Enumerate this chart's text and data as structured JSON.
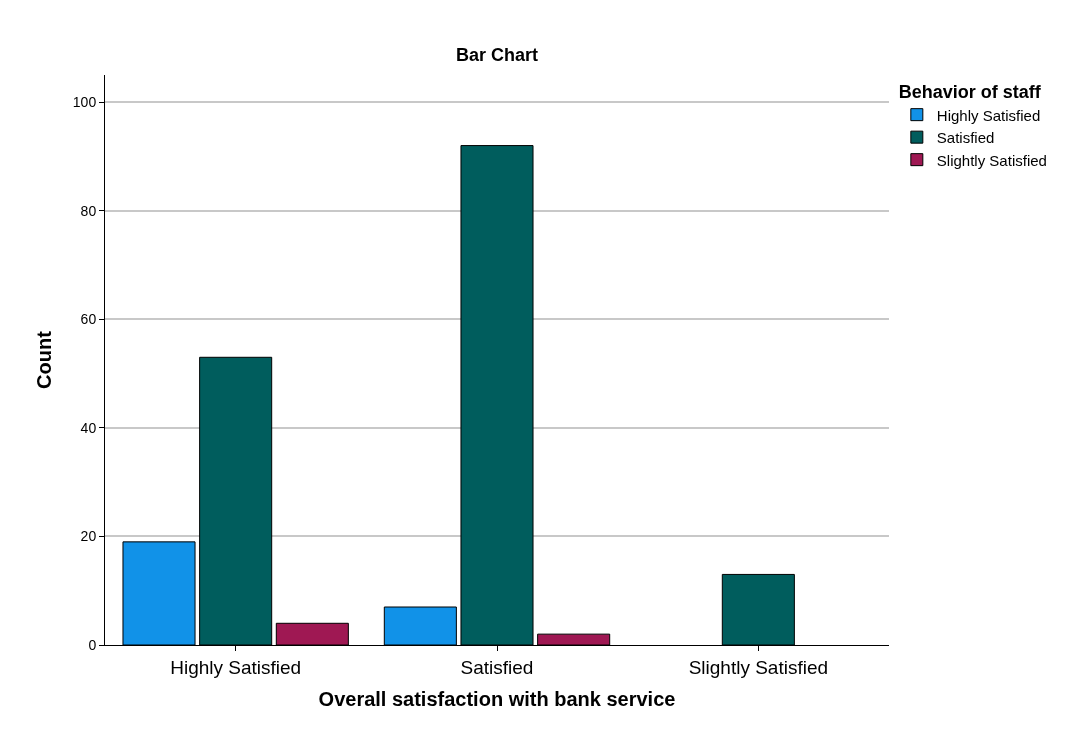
{
  "chart_data": {
    "type": "bar",
    "title": "Bar Chart",
    "xlabel": "Overall satisfaction with bank service",
    "ylabel": "Count",
    "legend_title": "Behavior of staff",
    "categories": [
      "Highly Satisfied",
      "Satisfied",
      "Slightly Satisfied"
    ],
    "series": [
      {
        "name": "Highly Satisfied",
        "color": "#1192e8",
        "values": [
          19,
          7,
          null
        ]
      },
      {
        "name": "Satisfied",
        "color": "#005d5d",
        "values": [
          53,
          92,
          13
        ]
      },
      {
        "name": "Slightly Satisfied",
        "color": "#9f1853",
        "values": [
          4,
          2,
          null
        ]
      }
    ],
    "ylim": [
      0,
      105
    ],
    "yticks": [
      0,
      20,
      40,
      60,
      80,
      100
    ],
    "grid": "y",
    "legend": "top right"
  }
}
